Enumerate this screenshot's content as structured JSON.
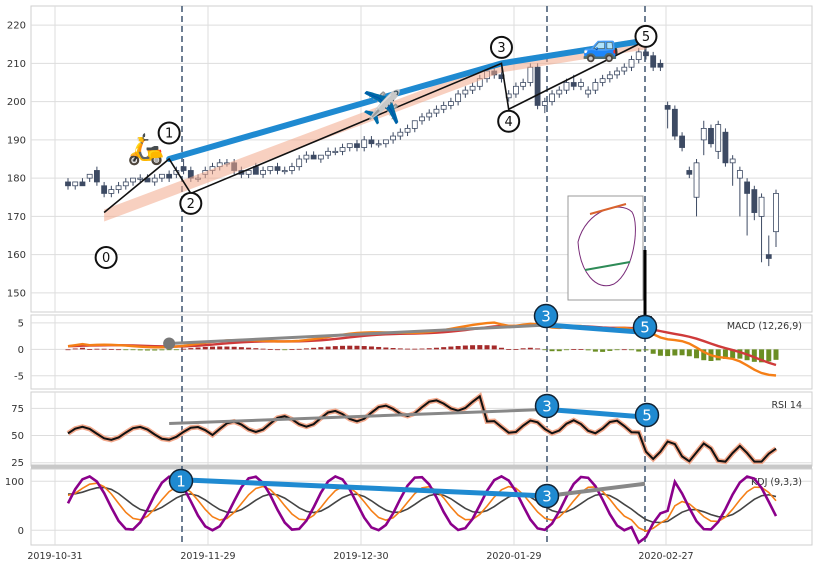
{
  "chart_data": {
    "type": "candlestick",
    "x_ticks": [
      "2019-10-31",
      "2019-11-29",
      "2019-12-30",
      "2020-01-29",
      "2020-02-27"
    ],
    "price": {
      "yticks": [
        150,
        160,
        170,
        180,
        190,
        200,
        210,
        220
      ],
      "ylim": [
        145,
        225
      ],
      "candles": [
        {
          "o": 179,
          "h": 180,
          "l": 177,
          "c": 178
        },
        {
          "o": 178,
          "h": 179,
          "l": 177,
          "c": 179
        },
        {
          "o": 179,
          "h": 180,
          "l": 178,
          "c": 178
        },
        {
          "o": 180,
          "h": 181,
          "l": 179,
          "c": 181
        },
        {
          "o": 182,
          "h": 183,
          "l": 178,
          "c": 179
        },
        {
          "o": 178,
          "h": 179,
          "l": 175,
          "c": 176
        },
        {
          "o": 176,
          "h": 178,
          "l": 175,
          "c": 177
        },
        {
          "o": 177,
          "h": 179,
          "l": 176,
          "c": 178
        },
        {
          "o": 178,
          "h": 180,
          "l": 177,
          "c": 179
        },
        {
          "o": 179,
          "h": 180,
          "l": 178,
          "c": 180
        },
        {
          "o": 180,
          "h": 181,
          "l": 179,
          "c": 180
        },
        {
          "o": 180,
          "h": 181,
          "l": 179,
          "c": 179
        },
        {
          "o": 179,
          "h": 181,
          "l": 178,
          "c": 180
        },
        {
          "o": 180,
          "h": 181,
          "l": 179,
          "c": 181
        },
        {
          "o": 181,
          "h": 182,
          "l": 179,
          "c": 180
        },
        {
          "o": 181,
          "h": 183,
          "l": 180,
          "c": 182
        },
        {
          "o": 183,
          "h": 185,
          "l": 181,
          "c": 182
        },
        {
          "o": 182,
          "h": 183,
          "l": 179,
          "c": 180
        },
        {
          "o": 180,
          "h": 181,
          "l": 179,
          "c": 180
        },
        {
          "o": 181,
          "h": 183,
          "l": 180,
          "c": 182
        },
        {
          "o": 182,
          "h": 184,
          "l": 181,
          "c": 183
        },
        {
          "o": 183,
          "h": 185,
          "l": 182,
          "c": 184
        },
        {
          "o": 184,
          "h": 185,
          "l": 183,
          "c": 184
        },
        {
          "o": 184,
          "h": 185,
          "l": 181,
          "c": 182
        },
        {
          "o": 182,
          "h": 183,
          "l": 180,
          "c": 181
        },
        {
          "o": 181,
          "h": 182,
          "l": 180,
          "c": 182
        },
        {
          "o": 183,
          "h": 184,
          "l": 181,
          "c": 181
        },
        {
          "o": 181,
          "h": 183,
          "l": 180,
          "c": 182
        },
        {
          "o": 182,
          "h": 183,
          "l": 181,
          "c": 183
        },
        {
          "o": 183,
          "h": 184,
          "l": 181,
          "c": 182
        },
        {
          "o": 182,
          "h": 183,
          "l": 181,
          "c": 182
        },
        {
          "o": 182,
          "h": 184,
          "l": 181,
          "c": 183
        },
        {
          "o": 183,
          "h": 186,
          "l": 182,
          "c": 185
        },
        {
          "o": 185,
          "h": 187,
          "l": 184,
          "c": 186
        },
        {
          "o": 186,
          "h": 187,
          "l": 185,
          "c": 185
        },
        {
          "o": 185,
          "h": 186,
          "l": 184,
          "c": 186
        },
        {
          "o": 186,
          "h": 188,
          "l": 185,
          "c": 187
        },
        {
          "o": 187,
          "h": 188,
          "l": 186,
          "c": 187
        },
        {
          "o": 187,
          "h": 189,
          "l": 186,
          "c": 188
        },
        {
          "o": 188,
          "h": 189,
          "l": 187,
          "c": 189
        },
        {
          "o": 189,
          "h": 190,
          "l": 187,
          "c": 188
        },
        {
          "o": 188,
          "h": 191,
          "l": 187,
          "c": 190
        },
        {
          "o": 190,
          "h": 191,
          "l": 188,
          "c": 189
        },
        {
          "o": 189,
          "h": 190,
          "l": 188,
          "c": 189
        },
        {
          "o": 189,
          "h": 190,
          "l": 188,
          "c": 190
        },
        {
          "o": 190,
          "h": 192,
          "l": 189,
          "c": 191
        },
        {
          "o": 191,
          "h": 193,
          "l": 190,
          "c": 192
        },
        {
          "o": 192,
          "h": 194,
          "l": 191,
          "c": 193
        },
        {
          "o": 193,
          "h": 195,
          "l": 192,
          "c": 195
        },
        {
          "o": 195,
          "h": 197,
          "l": 194,
          "c": 196
        },
        {
          "o": 196,
          "h": 198,
          "l": 195,
          "c": 197
        },
        {
          "o": 197,
          "h": 199,
          "l": 196,
          "c": 198
        },
        {
          "o": 198,
          "h": 200,
          "l": 197,
          "c": 199
        },
        {
          "o": 199,
          "h": 201,
          "l": 198,
          "c": 200
        },
        {
          "o": 200,
          "h": 203,
          "l": 199,
          "c": 202
        },
        {
          "o": 202,
          "h": 204,
          "l": 201,
          "c": 203
        },
        {
          "o": 203,
          "h": 205,
          "l": 202,
          "c": 204
        },
        {
          "o": 204,
          "h": 207,
          "l": 203,
          "c": 206
        },
        {
          "o": 206,
          "h": 209,
          "l": 205,
          "c": 208
        },
        {
          "o": 208,
          "h": 210,
          "l": 206,
          "c": 207
        },
        {
          "o": 207,
          "h": 209,
          "l": 205,
          "c": 206
        },
        {
          "o": 201,
          "h": 203,
          "l": 200,
          "c": 202
        },
        {
          "o": 202,
          "h": 205,
          "l": 201,
          "c": 204
        },
        {
          "o": 204,
          "h": 206,
          "l": 203,
          "c": 205
        },
        {
          "o": 205,
          "h": 210,
          "l": 204,
          "c": 209
        },
        {
          "o": 209,
          "h": 210,
          "l": 198,
          "c": 199
        },
        {
          "o": 199,
          "h": 201,
          "l": 197,
          "c": 200
        },
        {
          "o": 200,
          "h": 203,
          "l": 199,
          "c": 202
        },
        {
          "o": 202,
          "h": 204,
          "l": 201,
          "c": 203
        },
        {
          "o": 203,
          "h": 206,
          "l": 202,
          "c": 205
        },
        {
          "o": 205,
          "h": 207,
          "l": 203,
          "c": 204
        },
        {
          "o": 204,
          "h": 206,
          "l": 203,
          "c": 205
        },
        {
          "o": 202,
          "h": 204,
          "l": 201,
          "c": 203
        },
        {
          "o": 203,
          "h": 206,
          "l": 202,
          "c": 205
        },
        {
          "o": 205,
          "h": 207,
          "l": 204,
          "c": 206
        },
        {
          "o": 206,
          "h": 208,
          "l": 205,
          "c": 207
        },
        {
          "o": 207,
          "h": 209,
          "l": 206,
          "c": 208
        },
        {
          "o": 208,
          "h": 210,
          "l": 207,
          "c": 209
        },
        {
          "o": 209,
          "h": 212,
          "l": 208,
          "c": 211
        },
        {
          "o": 211,
          "h": 214,
          "l": 210,
          "c": 213
        },
        {
          "o": 213,
          "h": 215,
          "l": 211,
          "c": 212
        },
        {
          "o": 212,
          "h": 213,
          "l": 208,
          "c": 209
        },
        {
          "o": 210,
          "h": 211,
          "l": 208,
          "c": 209
        },
        {
          "o": 199,
          "h": 200,
          "l": 193,
          "c": 198
        },
        {
          "o": 198,
          "h": 199,
          "l": 190,
          "c": 191
        },
        {
          "o": 191,
          "h": 192,
          "l": 187,
          "c": 188
        },
        {
          "o": 182,
          "h": 183,
          "l": 180,
          "c": 181
        },
        {
          "o": 175,
          "h": 185,
          "l": 170,
          "c": 184
        },
        {
          "o": 190,
          "h": 195,
          "l": 186,
          "c": 193
        },
        {
          "o": 193,
          "h": 194,
          "l": 188,
          "c": 189
        },
        {
          "o": 187,
          "h": 195,
          "l": 185,
          "c": 194
        },
        {
          "o": 192,
          "h": 193,
          "l": 183,
          "c": 184
        },
        {
          "o": 184,
          "h": 186,
          "l": 178,
          "c": 185
        },
        {
          "o": 180,
          "h": 183,
          "l": 170,
          "c": 182
        },
        {
          "o": 179,
          "h": 180,
          "l": 165,
          "c": 176
        },
        {
          "o": 177,
          "h": 178,
          "l": 169,
          "c": 171
        },
        {
          "o": 170,
          "h": 176,
          "l": 158,
          "c": 175
        },
        {
          "o": 160,
          "h": 165,
          "l": 157,
          "c": 159
        },
        {
          "o": 166,
          "h": 177,
          "l": 162,
          "c": 176
        }
      ],
      "pattern_labels": [
        "0",
        "1",
        "2",
        "3",
        "4",
        "5"
      ],
      "pattern_values": [
        171,
        185,
        176,
        210,
        198,
        216
      ],
      "pattern_index": [
        5,
        14,
        17,
        60,
        61,
        80
      ]
    },
    "macd": {
      "label": "MACD (12,26,9)",
      "yticks": [
        5,
        0,
        -5
      ],
      "ylim": [
        -7.5,
        6.5
      ]
    },
    "rsi": {
      "label": "RSI 14",
      "yticks": [
        75,
        50,
        25
      ],
      "ylim": [
        22,
        90
      ]
    },
    "kdj": {
      "label": "KDJ (9,3,3)",
      "yticks": [
        100,
        0
      ],
      "ylim": [
        -30,
        125
      ]
    },
    "wave_markers": [
      {
        "panel": "macd",
        "label": "3"
      },
      {
        "panel": "macd",
        "label": "5"
      },
      {
        "panel": "rsi",
        "label": "3"
      },
      {
        "panel": "rsi",
        "label": "5"
      },
      {
        "panel": "kdj",
        "label": "1"
      },
      {
        "panel": "kdj",
        "label": "3"
      }
    ],
    "colors": {
      "candle_up": "#ffffff",
      "candle_down": "#3d4a63",
      "blue_trend": "#1f8ad1",
      "channel": "#f3a98c",
      "grey_line": "#888888",
      "macd_line": "#f57f17",
      "signal_line": "#cf3a3a",
      "hist_pos": "#a52a2a",
      "hist_neg": "#6b8e23",
      "k_line": "#f57f17",
      "d_line": "#444444",
      "j_line": "#8b008b",
      "vline": "#4a5f78"
    }
  }
}
